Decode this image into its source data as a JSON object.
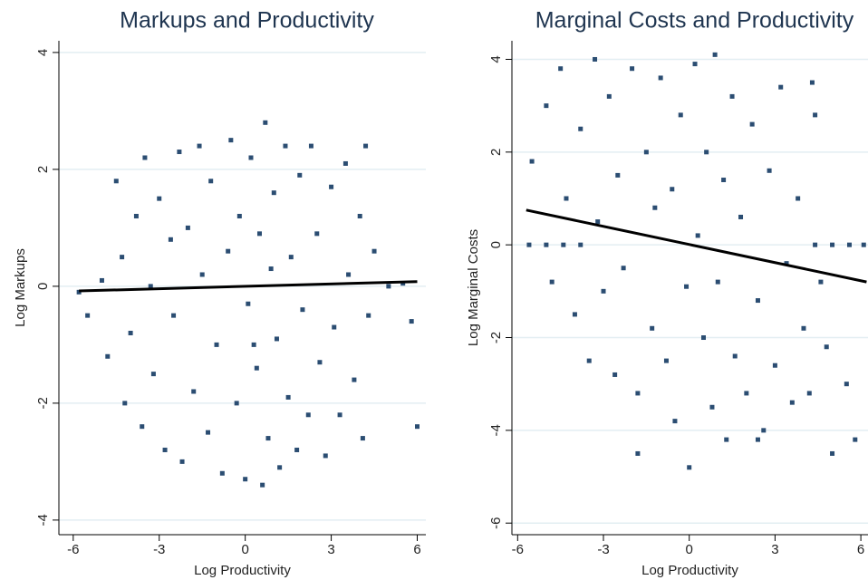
{
  "chart_data": [
    {
      "type": "scatter",
      "title": "Markups and Productivity",
      "x_label": "Log Productivity",
      "y_label": "Log Markups",
      "xlim": [
        -6.5,
        6.3
      ],
      "ylim": [
        -4.25,
        4.2
      ],
      "xticks": [
        -6,
        -3,
        0,
        3,
        6
      ],
      "yticks": [
        -4,
        -2,
        0,
        2,
        4
      ],
      "grid": true,
      "series": [
        {
          "color": "#2b4d72",
          "x": [
            -5.8,
            -5.5,
            -5,
            -4.8,
            -4.5,
            -4.3,
            -4.2,
            -4,
            -3.8,
            -3.6,
            -3.5,
            -3.3,
            -3.2,
            -3,
            -2.8,
            -2.6,
            -2.5,
            -2.3,
            -2.2,
            -2,
            -1.8,
            -1.6,
            -1.5,
            -1.3,
            -1.2,
            -1,
            -0.8,
            -0.6,
            -0.5,
            -0.3,
            -0.2,
            0,
            0.1,
            0.2,
            0.4,
            0.5,
            0.6,
            0.7,
            0.8,
            0.9,
            1,
            1.1,
            1.2,
            1.4,
            1.5,
            1.6,
            1.8,
            1.9,
            2,
            2.2,
            2.3,
            2.5,
            2.6,
            2.8,
            3,
            3.1,
            3.3,
            3.5,
            3.6,
            3.8,
            4,
            4.1,
            4.3,
            4.5,
            5,
            5.5,
            5.8,
            6,
            4.2,
            0.3
          ],
          "values": [
            -0.1,
            -0.5,
            0.1,
            -1.2,
            1.8,
            0.5,
            -2,
            -0.8,
            1.2,
            -2.4,
            2.2,
            0,
            -1.5,
            1.5,
            -2.8,
            0.8,
            -0.5,
            2.3,
            -3,
            1,
            -1.8,
            2.4,
            0.2,
            -2.5,
            1.8,
            -1,
            -3.2,
            0.6,
            2.5,
            -2,
            1.2,
            -3.3,
            -0.3,
            2.2,
            -1.4,
            0.9,
            -3.4,
            2.8,
            -2.6,
            0.3,
            1.6,
            -0.9,
            -3.1,
            2.4,
            -1.9,
            0.5,
            -2.8,
            1.9,
            -0.4,
            -2.2,
            2.4,
            0.9,
            -1.3,
            -2.9,
            1.7,
            -0.7,
            -2.2,
            2.1,
            0.2,
            -1.6,
            1.2,
            -2.6,
            -0.5,
            0.6,
            0,
            0.05,
            -0.6,
            -2.4,
            2.4,
            -1
          ]
        },
        {
          "color": "#000000",
          "line": true,
          "x": [
            -5.8,
            6
          ],
          "values": [
            -0.08,
            0.08
          ]
        }
      ]
    },
    {
      "type": "scatter",
      "title": "Marginal Costs and Productivity",
      "x_label": "Log Productivity",
      "y_label": "Log Marginal Costs",
      "xlim": [
        -6.2,
        6.25
      ],
      "ylim": [
        -6.25,
        4.4
      ],
      "xticks": [
        -6,
        -3,
        0,
        3,
        6
      ],
      "yticks": [
        -6,
        -4,
        -2,
        0,
        2,
        4
      ],
      "grid": true,
      "series": [
        {
          "color": "#2b4d72",
          "x": [
            -5.6,
            -5,
            -4.4,
            -3.8,
            4.4,
            5,
            5.6,
            6.1,
            -5.5,
            -5,
            -4.8,
            -4.5,
            -4.3,
            -4,
            -3.8,
            -3.5,
            -3.3,
            -3.2,
            -3,
            -2.8,
            -2.6,
            -2.5,
            -2.3,
            -2,
            -1.8,
            -1.8,
            -1.5,
            -1.3,
            -1.2,
            -1,
            -0.8,
            -0.6,
            -0.5,
            -0.3,
            -0.1,
            0,
            0.2,
            0.3,
            0.5,
            0.6,
            0.8,
            0.9,
            1,
            1.2,
            1.3,
            1.5,
            1.6,
            1.8,
            2,
            2.2,
            2.4,
            2.6,
            2.8,
            3,
            3.2,
            3.4,
            3.6,
            3.8,
            4,
            4.2,
            4.4,
            4.6,
            4.8,
            5,
            5.5,
            5.8,
            4.3,
            2.4
          ],
          "values": [
            0,
            0,
            0,
            0,
            0,
            0,
            0,
            0,
            1.8,
            3,
            -0.8,
            3.8,
            1,
            -1.5,
            2.5,
            -2.5,
            4,
            0.5,
            -1,
            3.2,
            -2.8,
            1.5,
            -0.5,
            3.8,
            -3.2,
            -4.5,
            2,
            -1.8,
            0.8,
            3.6,
            -2.5,
            1.2,
            -3.8,
            2.8,
            -0.9,
            -4.8,
            3.9,
            0.2,
            -2,
            2,
            -3.5,
            4.1,
            -0.8,
            1.4,
            -4.2,
            3.2,
            -2.4,
            0.6,
            -3.2,
            2.6,
            -1.2,
            -4,
            1.6,
            -2.6,
            3.4,
            -0.4,
            -3.4,
            1,
            -1.8,
            -3.2,
            2.8,
            -0.8,
            -2.2,
            -4.5,
            -3,
            -4.2,
            3.5,
            -4.2
          ]
        },
        {
          "color": "#000000",
          "line": true,
          "x": [
            -5.7,
            6.2
          ],
          "values": [
            0.75,
            -0.8
          ]
        }
      ]
    }
  ]
}
